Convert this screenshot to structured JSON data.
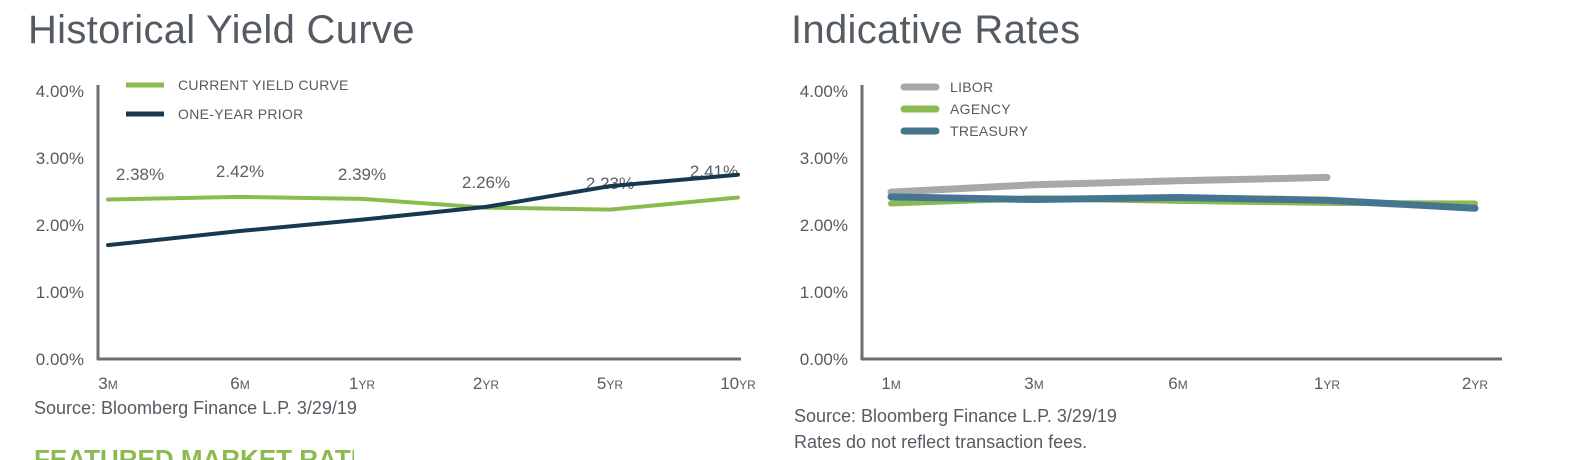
{
  "chart_data": [
    {
      "type": "line",
      "title": "Historical Yield Curve",
      "categories": [
        "3M",
        "6M",
        "1YR",
        "2YR",
        "5YR",
        "10YR"
      ],
      "ylim": [
        0,
        4
      ],
      "yticks": [
        "0.00%",
        "1.00%",
        "2.00%",
        "3.00%",
        "4.00%"
      ],
      "grid": false,
      "legend_position": "top-left",
      "series": [
        {
          "name": "CURRENT YIELD CURVE",
          "color": "#8bbb50",
          "values": [
            2.38,
            2.42,
            2.39,
            2.26,
            2.23,
            2.41
          ],
          "labels": [
            "2.38%",
            "2.42%",
            "2.39%",
            "2.26%",
            "2.23%",
            "2.41%"
          ]
        },
        {
          "name": "ONE-YEAR PRIOR",
          "color": "#17394f",
          "values": [
            1.7,
            1.91,
            2.08,
            2.27,
            2.58,
            2.75
          ]
        }
      ],
      "source": "Source: Bloomberg Finance L.P. 3/29/19"
    },
    {
      "type": "line",
      "title": "Indicative Rates",
      "categories": [
        "1M",
        "3M",
        "6M",
        "1YR",
        "2YR"
      ],
      "ylim": [
        0,
        4
      ],
      "yticks": [
        "0.00%",
        "1.00%",
        "2.00%",
        "3.00%",
        "4.00%"
      ],
      "grid": false,
      "legend_position": "top-left",
      "series": [
        {
          "name": "LIBOR",
          "color": "#a6a8aa",
          "values": [
            2.49,
            2.6,
            2.66,
            2.71,
            null
          ]
        },
        {
          "name": "AGENCY",
          "color": "#8bbb50",
          "values": [
            2.32,
            2.4,
            2.36,
            2.33,
            2.32
          ]
        },
        {
          "name": "TREASURY",
          "color": "#46768f",
          "values": [
            2.42,
            2.38,
            2.41,
            2.37,
            2.25
          ]
        }
      ],
      "source": "Source: Bloomberg Finance L.P. 3/29/19",
      "note": "Rates do not reflect transaction fees."
    }
  ],
  "footer_heading": "FEATURED MARKET RATES"
}
